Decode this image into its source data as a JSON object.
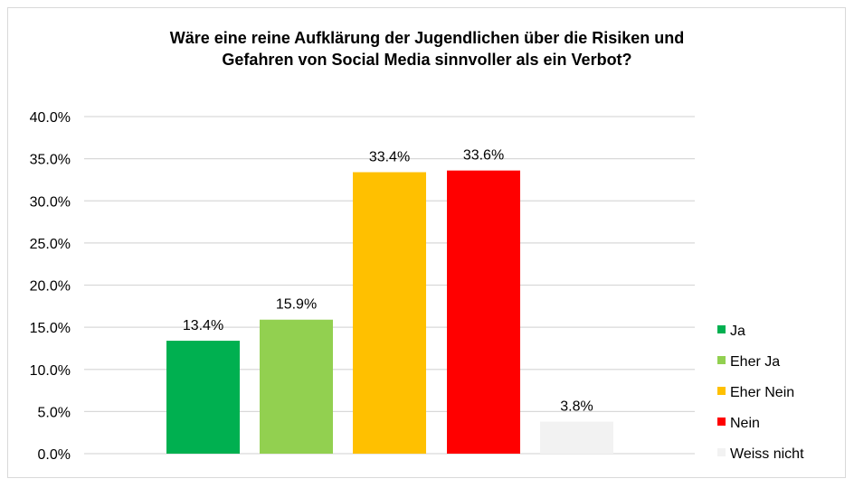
{
  "chart_data": {
    "type": "bar",
    "title_lines": [
      "Wäre eine reine Aufklärung der Jugendlichen über die Risiken und",
      "Gefahren von Social Media sinnvoller als ein Verbot?"
    ],
    "categories": [
      "Ja",
      "Eher Ja",
      "Eher Nein",
      "Nein",
      "Weiss nicht"
    ],
    "values": [
      13.4,
      15.9,
      33.4,
      33.6,
      3.8
    ],
    "data_labels": [
      "13.4%",
      "15.9%",
      "33.4%",
      "33.6%",
      "3.8%"
    ],
    "colors": [
      "#00B050",
      "#92D050",
      "#FFC000",
      "#FF0000",
      "#F2F2F2"
    ],
    "ylim": [
      0,
      40
    ],
    "yticks": [
      0,
      5,
      10,
      15,
      20,
      25,
      30,
      35,
      40
    ],
    "ytick_labels": [
      "0.0%",
      "5.0%",
      "10.0%",
      "15.0%",
      "20.0%",
      "25.0%",
      "30.0%",
      "35.0%",
      "40.0%"
    ],
    "xlabel": "",
    "ylabel": "",
    "grid": true,
    "legend_position": "right",
    "legend": [
      "Ja",
      "Eher Ja",
      "Eher Nein",
      "Nein",
      "Weiss nicht"
    ]
  }
}
